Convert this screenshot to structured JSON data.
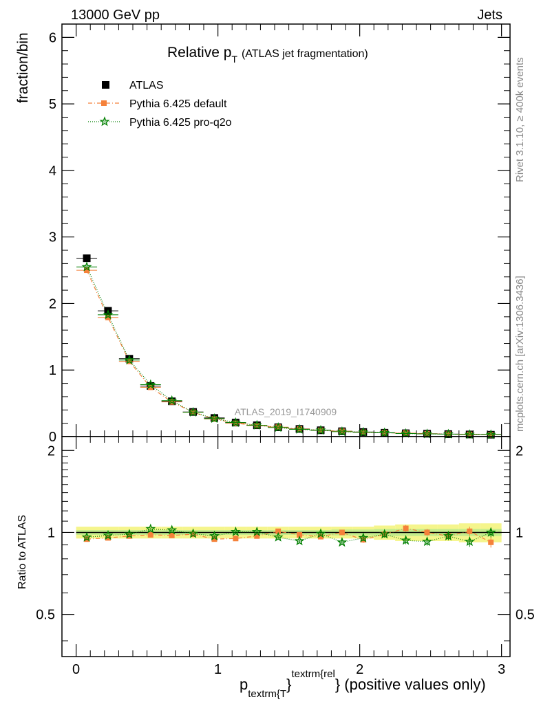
{
  "header": {
    "left": "13000 GeV pp",
    "right": "Jets"
  },
  "side": {
    "rivet": "Rivet 3.1.10, ≥ 400k events",
    "mcplots": "mcplots.cern.ch [arXiv:1306.3436]"
  },
  "watermark": "ATLAS_2019_I1740909",
  "chart_data": [
    {
      "type": "scatter",
      "title": "Relative p_T (ATLAS jet fragmentation)",
      "title_main": "Relative p",
      "title_sub": "T",
      "title_rest": "(ATLAS jet fragmentation)",
      "ylabel": "fraction/bin",
      "xlim": [
        -0.1,
        3.06
      ],
      "ylim": [
        0,
        6.2
      ],
      "xticks": [
        0,
        1,
        2,
        3
      ],
      "yticks": [
        0,
        1,
        2,
        3,
        4,
        5,
        6
      ],
      "x": [
        0.075,
        0.225,
        0.375,
        0.525,
        0.675,
        0.825,
        0.975,
        1.125,
        1.275,
        1.425,
        1.575,
        1.725,
        1.875,
        2.025,
        2.175,
        2.325,
        2.475,
        2.625,
        2.775,
        2.925
      ],
      "series": [
        {
          "name": "ATLAS",
          "color": "#000000",
          "marker": "square",
          "values": [
            2.68,
            1.89,
            1.17,
            0.76,
            0.53,
            0.37,
            0.28,
            0.21,
            0.17,
            0.14,
            0.115,
            0.095,
            0.08,
            0.068,
            0.058,
            0.05,
            0.043,
            0.037,
            0.032,
            0.028
          ]
        },
        {
          "name": "Pythia 6.425 default",
          "color": "#f5813a",
          "marker": "square",
          "line": "dashdot",
          "values": [
            2.5,
            1.79,
            1.13,
            0.74,
            0.52,
            0.365,
            0.265,
            0.2,
            0.165,
            0.142,
            0.113,
            0.093,
            0.08,
            0.064,
            0.057,
            0.052,
            0.043,
            0.036,
            0.033,
            0.026
          ]
        },
        {
          "name": "Pythia 6.425 pro-q2o",
          "color": "#007f00",
          "marker": "star",
          "line": "dotted",
          "values": [
            2.55,
            1.83,
            1.15,
            0.78,
            0.54,
            0.365,
            0.27,
            0.21,
            0.17,
            0.135,
            0.108,
            0.094,
            0.074,
            0.065,
            0.057,
            0.047,
            0.04,
            0.036,
            0.03,
            0.028
          ]
        }
      ]
    },
    {
      "type": "scatter",
      "ylabel": "Ratio to ATLAS",
      "xlabel_main": "p",
      "xlabel_sub": "textrm{T",
      "xlabel_sup": "textrm{rel",
      "xlabel_rest": "} (positive values only)",
      "xlim": [
        -0.1,
        3.06
      ],
      "ylim": [
        0.35,
        2.25
      ],
      "xticks": [
        0,
        1,
        2,
        3
      ],
      "yticks": [
        0.5,
        1,
        2
      ],
      "ytick_labels": [
        "0.5",
        "1",
        "2"
      ],
      "x": [
        0.075,
        0.225,
        0.375,
        0.525,
        0.675,
        0.825,
        0.975,
        1.125,
        1.275,
        1.425,
        1.575,
        1.725,
        1.875,
        2.025,
        2.175,
        2.325,
        2.475,
        2.625,
        2.775,
        2.925
      ],
      "band_inner": [
        0.02,
        0.02,
        0.02,
        0.02,
        0.02,
        0.02,
        0.02,
        0.02,
        0.02,
        0.02,
        0.02,
        0.02,
        0.025,
        0.025,
        0.03,
        0.03,
        0.03,
        0.03,
        0.03,
        0.03
      ],
      "band_outer": [
        0.05,
        0.05,
        0.05,
        0.05,
        0.05,
        0.05,
        0.05,
        0.05,
        0.05,
        0.05,
        0.05,
        0.05,
        0.05,
        0.05,
        0.06,
        0.07,
        0.07,
        0.07,
        0.08,
        0.08
      ],
      "series": [
        {
          "name": "Pythia 6.425 default",
          "color": "#f5813a",
          "marker": "square",
          "line": "dashdot",
          "values": [
            0.945,
            0.955,
            0.97,
            0.98,
            0.975,
            0.985,
            0.945,
            0.95,
            0.97,
            1.01,
            0.98,
            0.965,
            1.0,
            0.94,
            0.985,
            1.035,
            1.0,
            0.97,
            1.01,
            0.92
          ],
          "errors": [
            0.005,
            0.005,
            0.005,
            0.005,
            0.005,
            0.005,
            0.006,
            0.007,
            0.008,
            0.01,
            0.012,
            0.015,
            0.02,
            0.025,
            0.028,
            0.03,
            0.03,
            0.035,
            0.04,
            0.04
          ]
        },
        {
          "name": "Pythia 6.425 pro-q2o",
          "color": "#007f00",
          "marker": "star",
          "line": "dotted",
          "values": [
            0.96,
            0.975,
            0.985,
            1.03,
            1.02,
            0.99,
            0.97,
            1.005,
            1.005,
            0.96,
            0.93,
            0.99,
            0.92,
            0.955,
            0.985,
            0.935,
            0.925,
            0.97,
            0.925,
            1.0
          ],
          "errors": [
            0.005,
            0.005,
            0.005,
            0.005,
            0.005,
            0.005,
            0.006,
            0.007,
            0.008,
            0.01,
            0.012,
            0.015,
            0.02,
            0.025,
            0.028,
            0.03,
            0.03,
            0.035,
            0.04,
            0.04
          ]
        }
      ]
    }
  ]
}
